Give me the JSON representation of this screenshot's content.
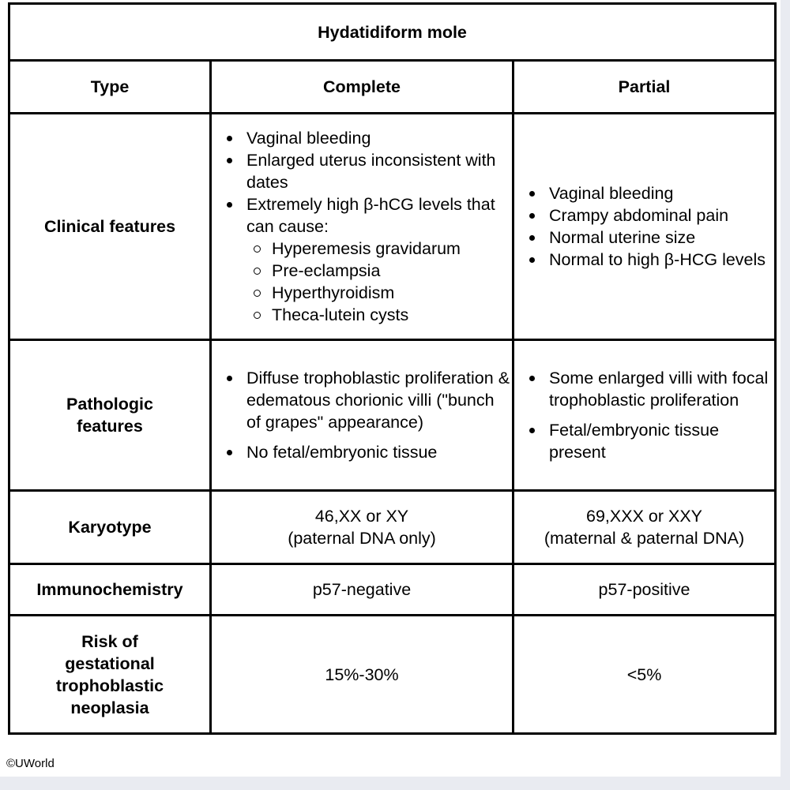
{
  "title": "Hydatidiform mole",
  "headers": {
    "type": "Type",
    "complete": "Complete",
    "partial": "Partial"
  },
  "rows": {
    "clinical": {
      "label": "Clinical features",
      "complete": {
        "bullets": [
          "Vaginal bleeding",
          "Enlarged uterus inconsistent with dates",
          "Extremely high β-hCG levels that can cause:"
        ],
        "sub_bullets": [
          "Hyperemesis gravidarum",
          "Pre-eclampsia",
          "Hyperthyroidism",
          "Theca-lutein cysts"
        ]
      },
      "partial": {
        "bullets": [
          "Vaginal bleeding",
          "Crampy abdominal pain",
          "Normal uterine size",
          "Normal to high β-HCG levels"
        ]
      }
    },
    "pathologic": {
      "label_line1": "Pathologic",
      "label_line2": "features",
      "complete": {
        "bullets": [
          "Diffuse trophoblastic proliferation & edematous chorionic villi (\"bunch of grapes\" appearance)",
          "No fetal/embryonic tissue"
        ]
      },
      "partial": {
        "bullets": [
          "Some enlarged villi with focal trophoblastic proliferation",
          "Fetal/embryonic tissue present"
        ]
      }
    },
    "karyotype": {
      "label": "Karyotype",
      "complete_line1": "46,XX or XY",
      "complete_line2": "(paternal DNA only)",
      "partial_line1": "69,XXX or XXY",
      "partial_line2": "(maternal & paternal DNA)"
    },
    "immunochemistry": {
      "label": "Immunochemistry",
      "complete": "p57-negative",
      "partial": "p57-positive"
    },
    "risk": {
      "label_lines": [
        "Risk of",
        "gestational",
        "trophoblastic",
        "neoplasia"
      ],
      "complete": "15%-30%",
      "partial": "<5%"
    }
  },
  "copyright": "©UWorld"
}
